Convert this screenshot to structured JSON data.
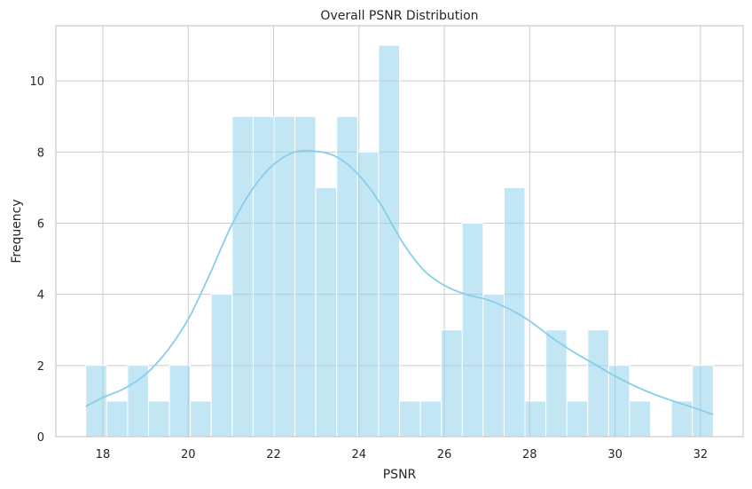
{
  "chart_data": {
    "type": "bar",
    "subtype": "histogram-with-kde",
    "title": "Overall PSNR Distribution",
    "xlabel": "PSNR",
    "ylabel": "Frequency",
    "xlim": [
      16.9,
      33.0
    ],
    "ylim": [
      0,
      11.55
    ],
    "xticks": [
      18,
      20,
      22,
      24,
      26,
      28,
      30,
      32
    ],
    "yticks": [
      0,
      2,
      4,
      6,
      8,
      10
    ],
    "bin_start": 17.6,
    "bin_width": 0.49,
    "counts": [
      2,
      1,
      2,
      1,
      2,
      1,
      4,
      9,
      9,
      9,
      9,
      7,
      9,
      8,
      11,
      1,
      1,
      3,
      6,
      4,
      7,
      1,
      3,
      1,
      3,
      2,
      1,
      0,
      1,
      2
    ],
    "kde": {
      "x": [
        17.6,
        18.0,
        18.5,
        19.0,
        19.5,
        20.0,
        20.5,
        21.0,
        21.5,
        22.0,
        22.5,
        23.0,
        23.5,
        24.0,
        24.5,
        25.0,
        25.5,
        26.0,
        26.5,
        27.0,
        27.5,
        28.0,
        28.5,
        29.0,
        29.5,
        30.0,
        30.5,
        31.0,
        31.5,
        32.0,
        32.3
      ],
      "y": [
        0.85,
        1.1,
        1.35,
        1.75,
        2.4,
        3.3,
        4.55,
        5.9,
        6.95,
        7.65,
        8.0,
        8.02,
        7.85,
        7.35,
        6.55,
        5.5,
        4.7,
        4.25,
        4.0,
        3.85,
        3.6,
        3.25,
        2.8,
        2.4,
        2.05,
        1.7,
        1.4,
        1.15,
        0.95,
        0.75,
        0.62
      ]
    },
    "grid": true,
    "color": "#87ceeb"
  }
}
